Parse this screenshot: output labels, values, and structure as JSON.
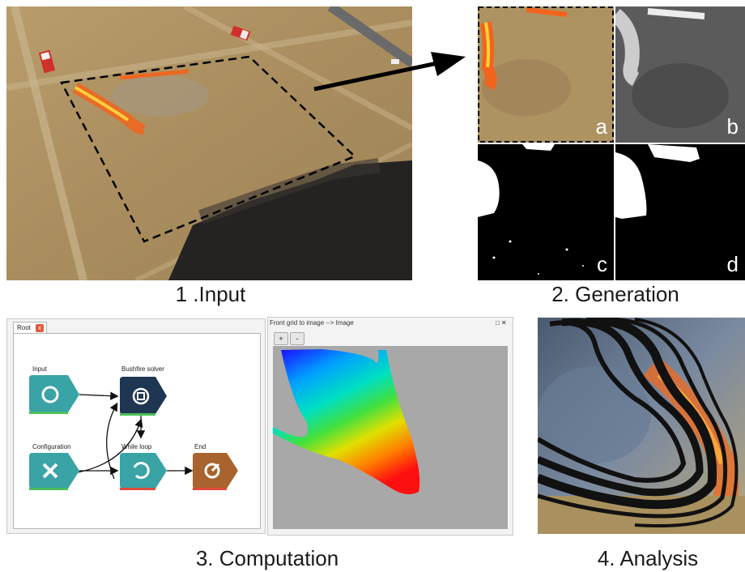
{
  "captions": {
    "input": "1 .Input",
    "generation": "2. Generation",
    "computation": "3. Computation",
    "analysis": "4. Analysis"
  },
  "generation_labels": [
    "a",
    "b",
    "c",
    "d"
  ],
  "workflow": {
    "tab_label": "Root",
    "tab_close": "x",
    "nodes": {
      "input": "Input",
      "solver": "Bushfire solver",
      "configuration": "Configuration",
      "while_loop": "While loop",
      "end": "End"
    }
  },
  "viewer": {
    "title": "Front grid to image --> Image",
    "window_controls": "□ ✕",
    "zoom_in": "+",
    "zoom_out": "-"
  },
  "colors": {
    "grass": "#b49766",
    "burnt": "#2a2826",
    "fire": "#f2641c",
    "node_teal": "#3aa3a6",
    "node_navy": "#1f3653",
    "node_brown": "#a8632e",
    "viewer_bg": "#a8a8a8"
  }
}
